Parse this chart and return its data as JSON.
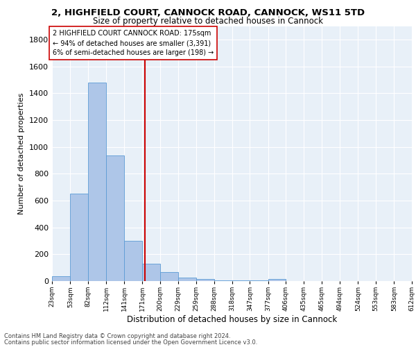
{
  "title_line1": "2, HIGHFIELD COURT, CANNOCK ROAD, CANNOCK, WS11 5TD",
  "title_line2": "Size of property relative to detached houses in Cannock",
  "xlabel": "Distribution of detached houses by size in Cannock",
  "ylabel": "Number of detached properties",
  "bar_edges": [
    23,
    53,
    82,
    112,
    141,
    171,
    200,
    229,
    259,
    288,
    318,
    347,
    377,
    406,
    435,
    465,
    494,
    524,
    553,
    583,
    612
  ],
  "bar_heights": [
    38,
    650,
    1480,
    935,
    300,
    130,
    65,
    25,
    15,
    5,
    5,
    5,
    18,
    0,
    0,
    0,
    0,
    0,
    0,
    0
  ],
  "bar_color": "#aec6e8",
  "bar_edge_color": "#5b9bd5",
  "property_line_x": 175,
  "property_line_color": "#cc0000",
  "annotation_text": "2 HIGHFIELD COURT CANNOCK ROAD: 175sqm\n← 94% of detached houses are smaller (3,391)\n6% of semi-detached houses are larger (198) →",
  "annotation_box_color": "#ffffff",
  "annotation_box_edge": "#cc0000",
  "yticks": [
    0,
    200,
    400,
    600,
    800,
    1000,
    1200,
    1400,
    1600,
    1800
  ],
  "ylim": [
    0,
    1900
  ],
  "bg_color": "#e8f0f8",
  "footer_line1": "Contains HM Land Registry data © Crown copyright and database right 2024.",
  "footer_line2": "Contains public sector information licensed under the Open Government Licence v3.0."
}
